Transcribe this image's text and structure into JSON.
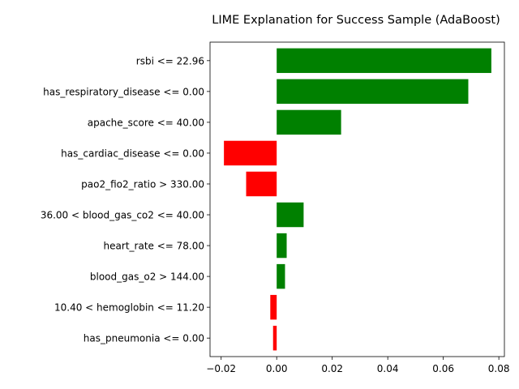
{
  "chart_data": {
    "type": "bar",
    "orientation": "horizontal",
    "title": "LIME Explanation for Success Sample (AdaBoost)",
    "xlabel": "",
    "ylabel": "",
    "xlim": [
      -0.024,
      0.082
    ],
    "xticks": [
      -0.02,
      0.0,
      0.02,
      0.04,
      0.06,
      0.08
    ],
    "xtick_labels": [
      "−0.02",
      "0.00",
      "0.02",
      "0.04",
      "0.06",
      "0.08"
    ],
    "grid": false,
    "categories": [
      "rsbi <= 22.96",
      "has_respiratory_disease <= 0.00",
      "apache_score <= 40.00",
      "has_cardiac_disease <= 0.00",
      "pao2_fio2_ratio > 330.00",
      "36.00 < blood_gas_co2 <= 40.00",
      "heart_rate <= 78.00",
      "blood_gas_o2 > 144.00",
      "10.40 < hemoglobin <= 11.20",
      "has_pneumonia <= 0.00"
    ],
    "values": [
      0.0773,
      0.069,
      0.0232,
      -0.019,
      -0.011,
      0.0097,
      0.0036,
      0.003,
      -0.0023,
      -0.0013
    ],
    "colors": {
      "positive": "#008000",
      "negative": "#ff0000"
    }
  }
}
